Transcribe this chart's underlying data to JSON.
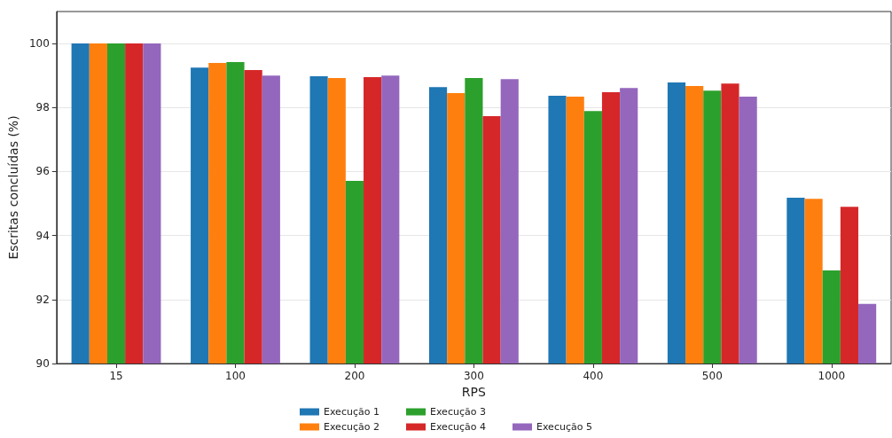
{
  "chart_data": {
    "type": "bar",
    "xlabel": "RPS",
    "ylabel": "Escritas concluídas (%)",
    "categories": [
      "15",
      "100",
      "200",
      "300",
      "400",
      "500",
      "1000"
    ],
    "series": [
      {
        "name": "Execução 1",
        "color": "#1f77b4",
        "values": [
          100,
          99.25,
          98.98,
          98.64,
          98.37,
          98.78,
          95.18
        ]
      },
      {
        "name": "Execução 2",
        "color": "#ff7f0e",
        "values": [
          100,
          99.39,
          98.92,
          98.45,
          98.34,
          98.67,
          95.15
        ]
      },
      {
        "name": "Execução 3",
        "color": "#2ca02c",
        "values": [
          100,
          99.42,
          95.71,
          98.92,
          97.89,
          98.53,
          92.91
        ]
      },
      {
        "name": "Execução 4",
        "color": "#d62728",
        "values": [
          100,
          99.17,
          98.95,
          97.73,
          98.48,
          98.75,
          94.9
        ]
      },
      {
        "name": "Execução 5",
        "color": "#9467bd",
        "values": [
          100,
          99.0,
          99.0,
          98.89,
          98.61,
          98.34,
          91.86
        ]
      }
    ],
    "ylim": [
      90,
      101
    ],
    "yticks": [
      90,
      92,
      94,
      96,
      98,
      100
    ],
    "grid": "y",
    "legend": "bottom"
  }
}
